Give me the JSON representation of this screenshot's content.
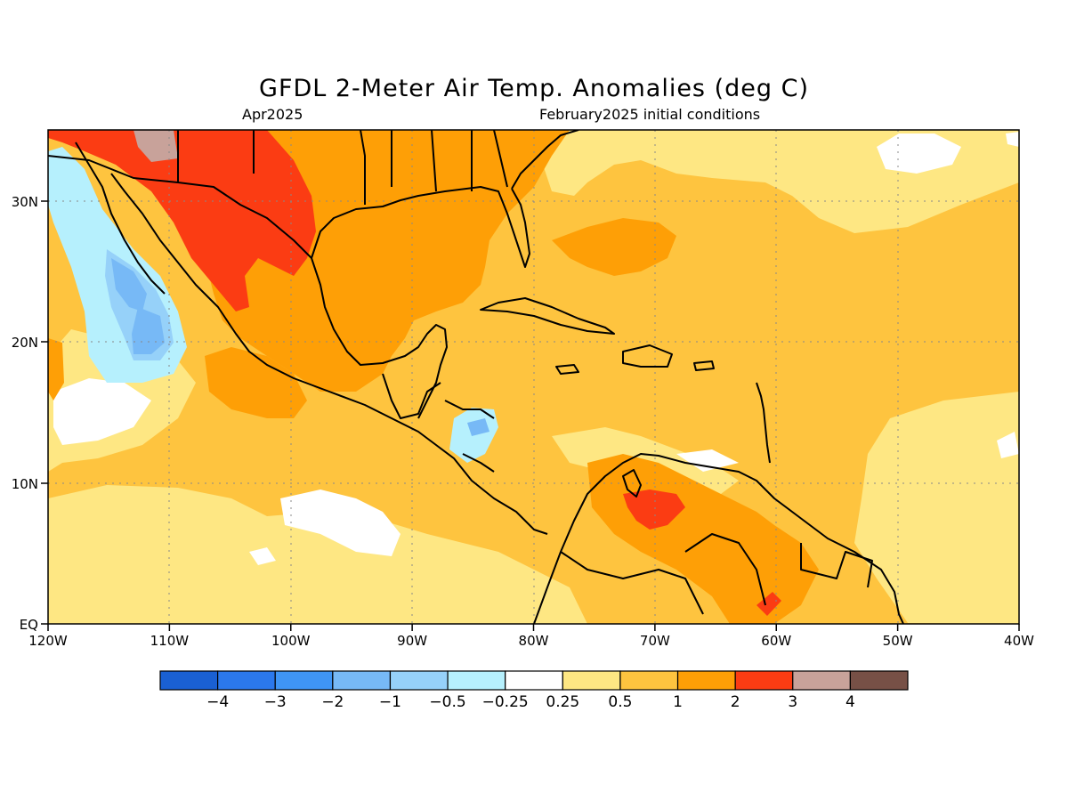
{
  "title": "GFDL 2-Meter Air Temp. Anomalies (deg C)",
  "valid_month": "Apr2025",
  "init_conditions": "February2025 initial conditions",
  "map": {
    "lon_ticks": [
      "120W",
      "110W",
      "100W",
      "90W",
      "80W",
      "70W",
      "60W",
      "50W",
      "40W"
    ],
    "lat_ticks": [
      "30N",
      "20N",
      "10N",
      "EQ"
    ],
    "gridlines": true
  },
  "colorbar": {
    "colors": [
      "#1a60d3",
      "#2b78ec",
      "#3f95f5",
      "#77b9f6",
      "#96d1f9",
      "#b6f0fd",
      "#ffffff",
      "#fee783",
      "#fec43f",
      "#fe9f06",
      "#fb3c13",
      "#c8a29a",
      "#775046"
    ],
    "labels": [
      "-4",
      "-3",
      "-2",
      "-1",
      "-0.5",
      "-0.25",
      "0.25",
      "0.5",
      "1",
      "2",
      "3",
      "4"
    ]
  },
  "colors": {
    "pale_yellow": "#fee783",
    "light_orange": "#fec43f",
    "orange": "#fe9f06",
    "red": "#fb3c13",
    "pink_brown": "#c8a29a",
    "light_blue": "#b6f0fd",
    "blue": "#96d1f9",
    "mid_blue": "#77b9f6"
  }
}
